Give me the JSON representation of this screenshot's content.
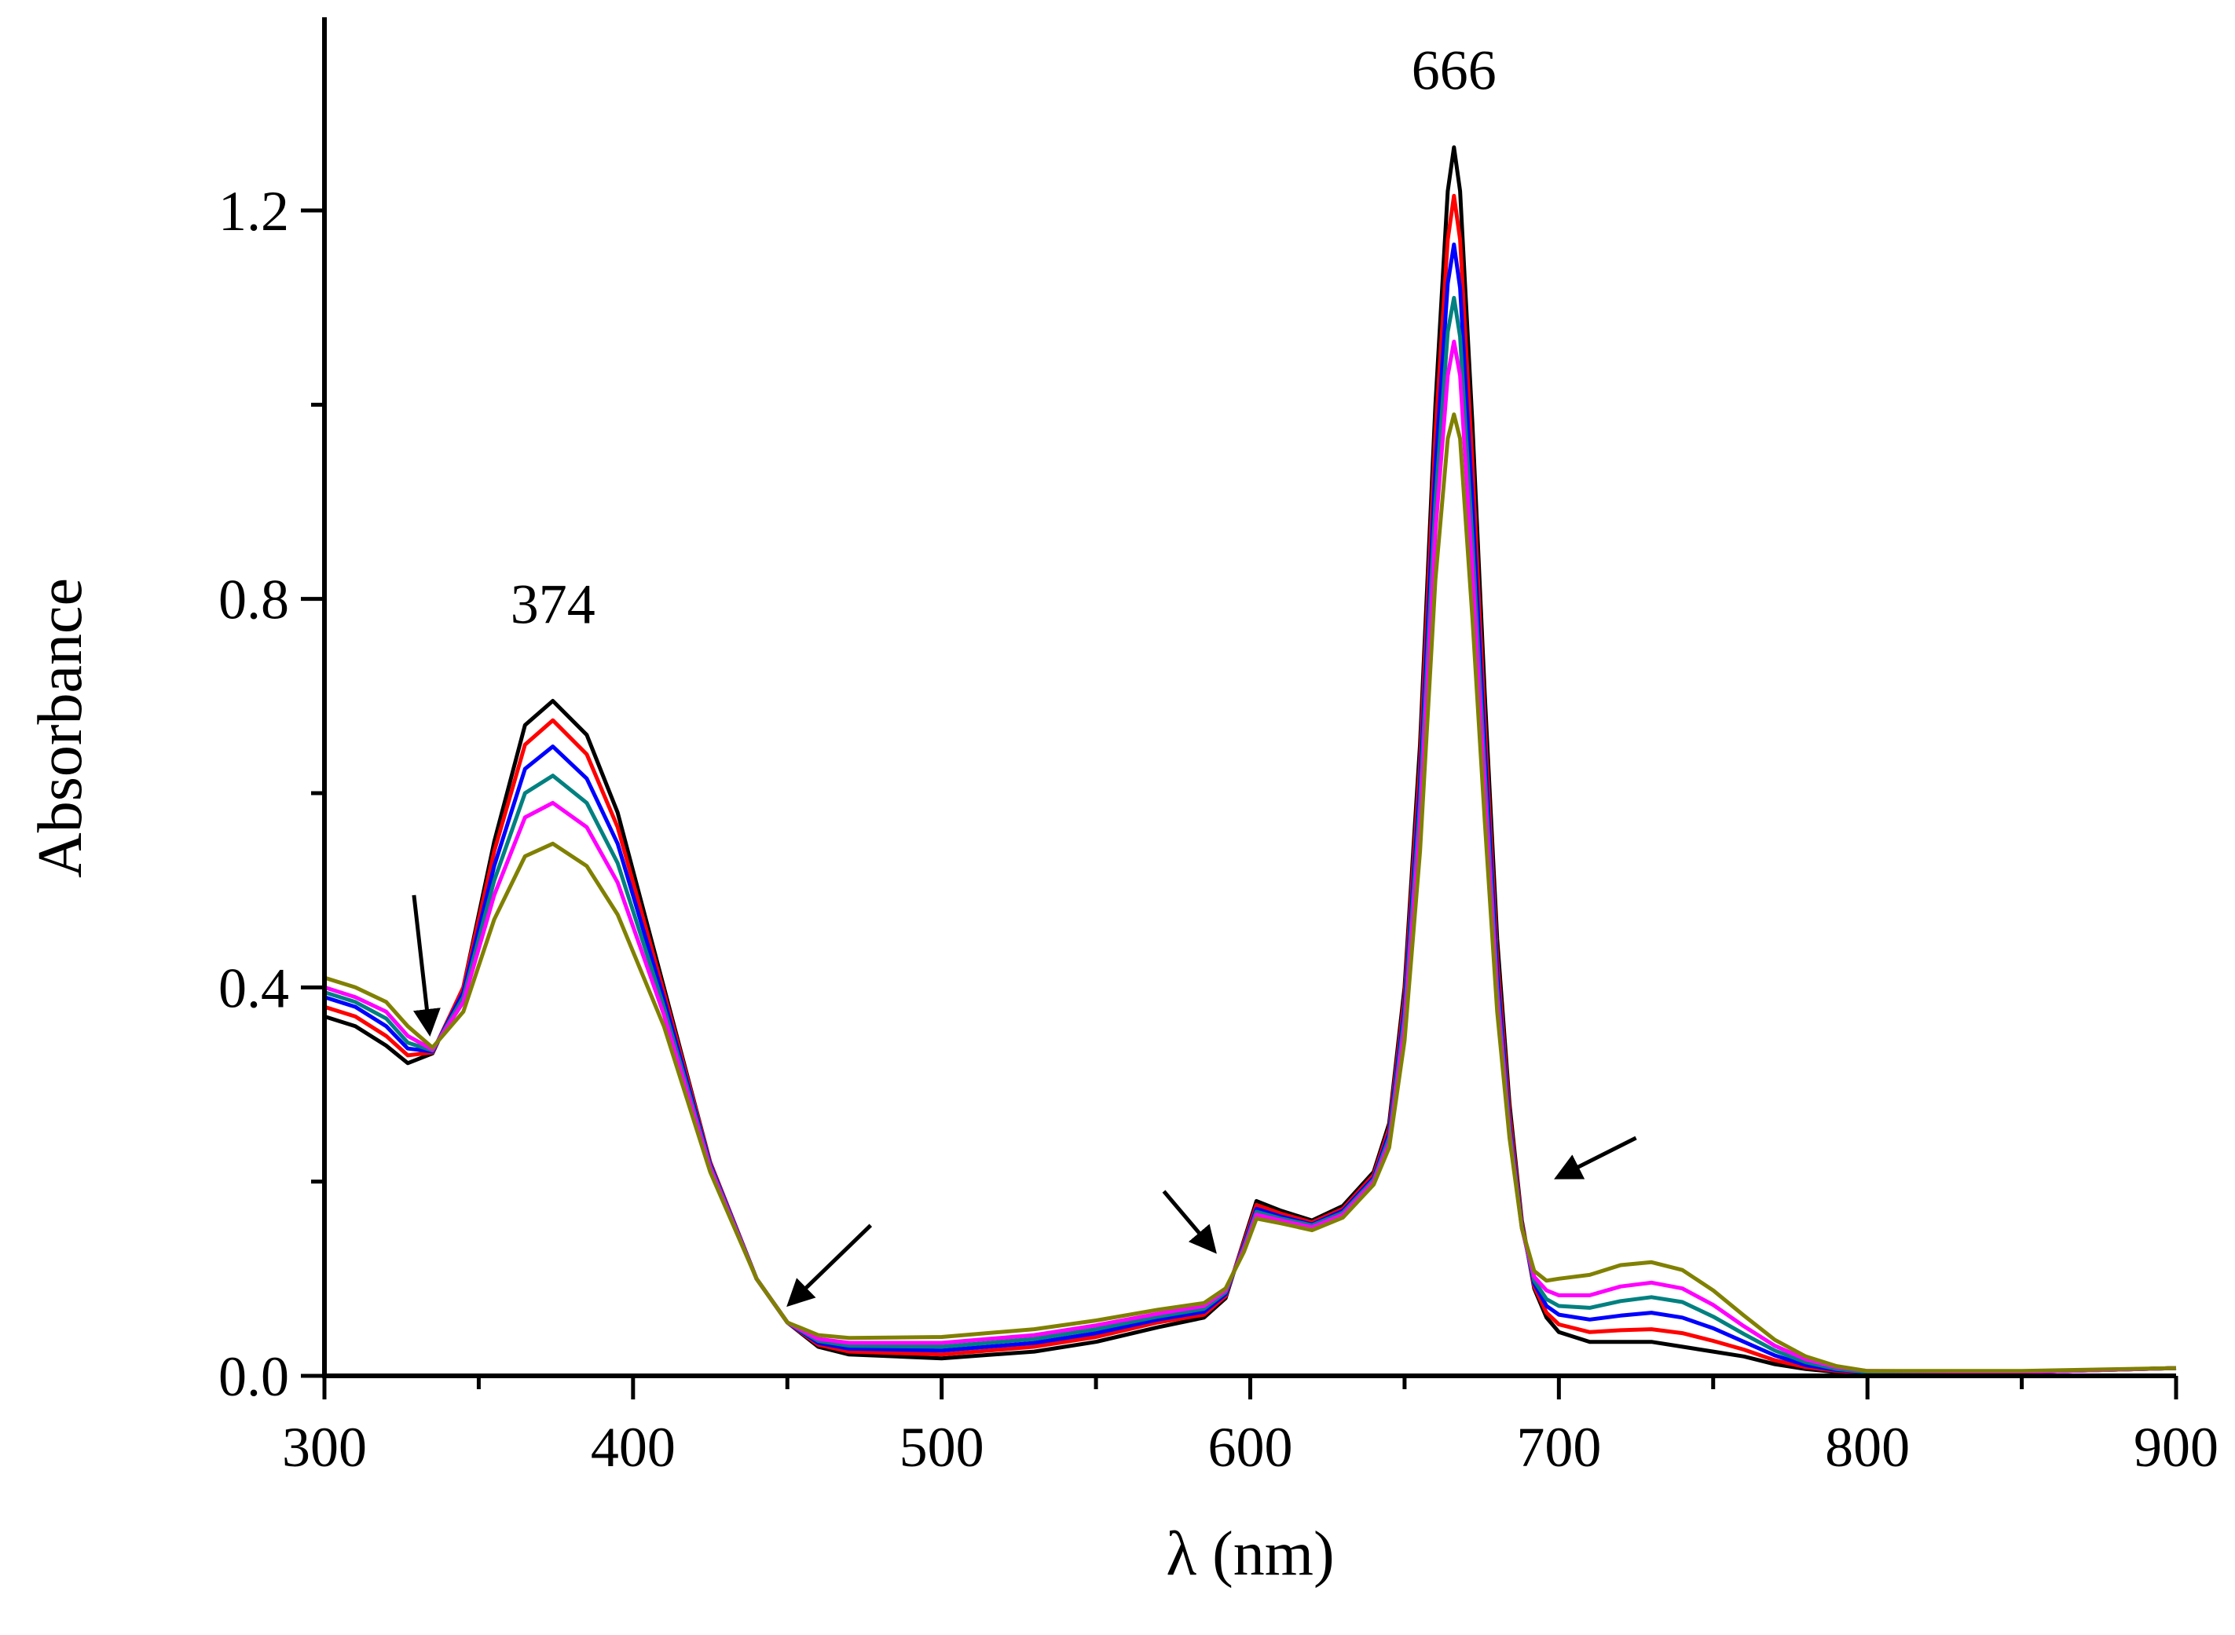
{
  "chart_data": {
    "type": "line",
    "title": "",
    "xlabel": "λ (nm)",
    "ylabel": "Absorbance",
    "xlim": [
      300,
      900
    ],
    "ylim": [
      0.0,
      1.35
    ],
    "x_ticks": [
      300,
      400,
      500,
      600,
      700,
      800,
      900
    ],
    "x_tick_labels": [
      "300",
      "400",
      "500",
      "600",
      "700",
      "800",
      "900"
    ],
    "x_minor_ticks": [
      350,
      450,
      550,
      650,
      750,
      850
    ],
    "y_ticks": [
      0.0,
      0.4,
      0.8,
      1.2
    ],
    "y_tick_labels": [
      "0.0",
      "0.4",
      "0.8",
      "1.2"
    ],
    "y_minor_ticks": [
      0.2,
      0.6,
      1.0
    ],
    "grid": false,
    "legend": "none",
    "x": [
      300,
      310,
      320,
      327,
      335,
      345,
      355,
      365,
      374,
      385,
      395,
      410,
      425,
      440,
      450,
      460,
      470,
      500,
      530,
      550,
      570,
      585,
      592,
      598,
      602,
      610,
      620,
      630,
      640,
      645,
      650,
      655,
      660,
      664,
      666,
      668,
      672,
      676,
      680,
      684,
      688,
      692,
      696,
      700,
      710,
      720,
      730,
      740,
      750,
      760,
      770,
      780,
      790,
      800,
      850,
      900
    ],
    "series": [
      {
        "name": "curve 1",
        "color": "#000000",
        "values": [
          0.37,
          0.36,
          0.34,
          0.322,
          0.332,
          0.4,
          0.55,
          0.67,
          0.695,
          0.66,
          0.58,
          0.4,
          0.22,
          0.1,
          0.055,
          0.03,
          0.022,
          0.018,
          0.025,
          0.035,
          0.05,
          0.06,
          0.08,
          0.14,
          0.18,
          0.17,
          0.16,
          0.175,
          0.21,
          0.26,
          0.4,
          0.65,
          1.0,
          1.22,
          1.265,
          1.22,
          0.98,
          0.7,
          0.45,
          0.28,
          0.16,
          0.09,
          0.06,
          0.045,
          0.035,
          0.035,
          0.035,
          0.03,
          0.025,
          0.02,
          0.012,
          0.007,
          0.004,
          0.003,
          0.004,
          0.008
        ]
      },
      {
        "name": "curve 2",
        "color": "#ff0000",
        "values": [
          0.38,
          0.37,
          0.35,
          0.33,
          0.333,
          0.4,
          0.54,
          0.65,
          0.675,
          0.64,
          0.565,
          0.395,
          0.22,
          0.1,
          0.055,
          0.032,
          0.025,
          0.022,
          0.03,
          0.04,
          0.055,
          0.063,
          0.082,
          0.138,
          0.176,
          0.167,
          0.158,
          0.172,
          0.207,
          0.255,
          0.39,
          0.63,
          0.97,
          1.17,
          1.215,
          1.17,
          0.94,
          0.67,
          0.43,
          0.27,
          0.158,
          0.092,
          0.065,
          0.053,
          0.045,
          0.047,
          0.048,
          0.044,
          0.036,
          0.027,
          0.016,
          0.009,
          0.005,
          0.003,
          0.004,
          0.008
        ]
      },
      {
        "name": "curve 3",
        "color": "#0000ff",
        "values": [
          0.39,
          0.38,
          0.36,
          0.337,
          0.334,
          0.395,
          0.525,
          0.625,
          0.648,
          0.615,
          0.548,
          0.388,
          0.218,
          0.1,
          0.055,
          0.034,
          0.028,
          0.026,
          0.034,
          0.044,
          0.058,
          0.066,
          0.084,
          0.135,
          0.172,
          0.164,
          0.156,
          0.17,
          0.204,
          0.25,
          0.38,
          0.61,
          0.935,
          1.125,
          1.165,
          1.12,
          0.9,
          0.645,
          0.415,
          0.26,
          0.155,
          0.095,
          0.072,
          0.063,
          0.058,
          0.062,
          0.065,
          0.06,
          0.049,
          0.035,
          0.021,
          0.011,
          0.006,
          0.004,
          0.004,
          0.008
        ]
      },
      {
        "name": "curve 4",
        "color": "#008080",
        "values": [
          0.395,
          0.385,
          0.368,
          0.343,
          0.335,
          0.39,
          0.51,
          0.6,
          0.618,
          0.59,
          0.528,
          0.38,
          0.216,
          0.1,
          0.055,
          0.036,
          0.031,
          0.03,
          0.038,
          0.048,
          0.061,
          0.069,
          0.086,
          0.133,
          0.169,
          0.162,
          0.155,
          0.168,
          0.202,
          0.245,
          0.37,
          0.59,
          0.9,
          1.075,
          1.11,
          1.07,
          0.86,
          0.62,
          0.4,
          0.255,
          0.153,
          0.098,
          0.079,
          0.072,
          0.07,
          0.077,
          0.081,
          0.076,
          0.061,
          0.043,
          0.026,
          0.014,
          0.007,
          0.004,
          0.004,
          0.008
        ]
      },
      {
        "name": "curve 5",
        "color": "#ff00ff",
        "values": [
          0.4,
          0.39,
          0.375,
          0.35,
          0.336,
          0.385,
          0.495,
          0.575,
          0.59,
          0.565,
          0.508,
          0.372,
          0.214,
          0.1,
          0.055,
          0.038,
          0.034,
          0.034,
          0.042,
          0.052,
          0.064,
          0.072,
          0.088,
          0.131,
          0.166,
          0.16,
          0.153,
          0.166,
          0.2,
          0.24,
          0.36,
          0.57,
          0.87,
          1.03,
          1.065,
          1.03,
          0.83,
          0.6,
          0.39,
          0.25,
          0.152,
          0.102,
          0.088,
          0.083,
          0.083,
          0.092,
          0.096,
          0.09,
          0.073,
          0.051,
          0.031,
          0.017,
          0.009,
          0.005,
          0.004,
          0.008
        ]
      },
      {
        "name": "curve 6",
        "color": "#808000",
        "values": [
          0.41,
          0.4,
          0.385,
          0.36,
          0.338,
          0.375,
          0.47,
          0.535,
          0.548,
          0.525,
          0.475,
          0.36,
          0.21,
          0.1,
          0.055,
          0.042,
          0.039,
          0.04,
          0.048,
          0.057,
          0.068,
          0.075,
          0.09,
          0.128,
          0.162,
          0.157,
          0.15,
          0.163,
          0.197,
          0.235,
          0.345,
          0.54,
          0.82,
          0.965,
          0.99,
          0.965,
          0.78,
          0.57,
          0.375,
          0.245,
          0.152,
          0.108,
          0.098,
          0.1,
          0.104,
          0.114,
          0.117,
          0.109,
          0.088,
          0.062,
          0.037,
          0.02,
          0.01,
          0.005,
          0.005,
          0.008
        ]
      }
    ],
    "annotations": [
      {
        "text": "374",
        "x": 374,
        "y": 0.775
      },
      {
        "text": "666",
        "x": 666,
        "y": 1.325
      }
    ],
    "arrows": [
      {
        "from": [
          329,
          0.495
        ],
        "to": [
          334,
          0.355
        ]
      },
      {
        "from": [
          477,
          0.155
        ],
        "to": [
          451,
          0.075
        ]
      },
      {
        "from": [
          572,
          0.19
        ],
        "to": [
          588,
          0.13
        ]
      },
      {
        "from": [
          725,
          0.245
        ],
        "to": [
          700,
          0.205
        ]
      }
    ]
  }
}
